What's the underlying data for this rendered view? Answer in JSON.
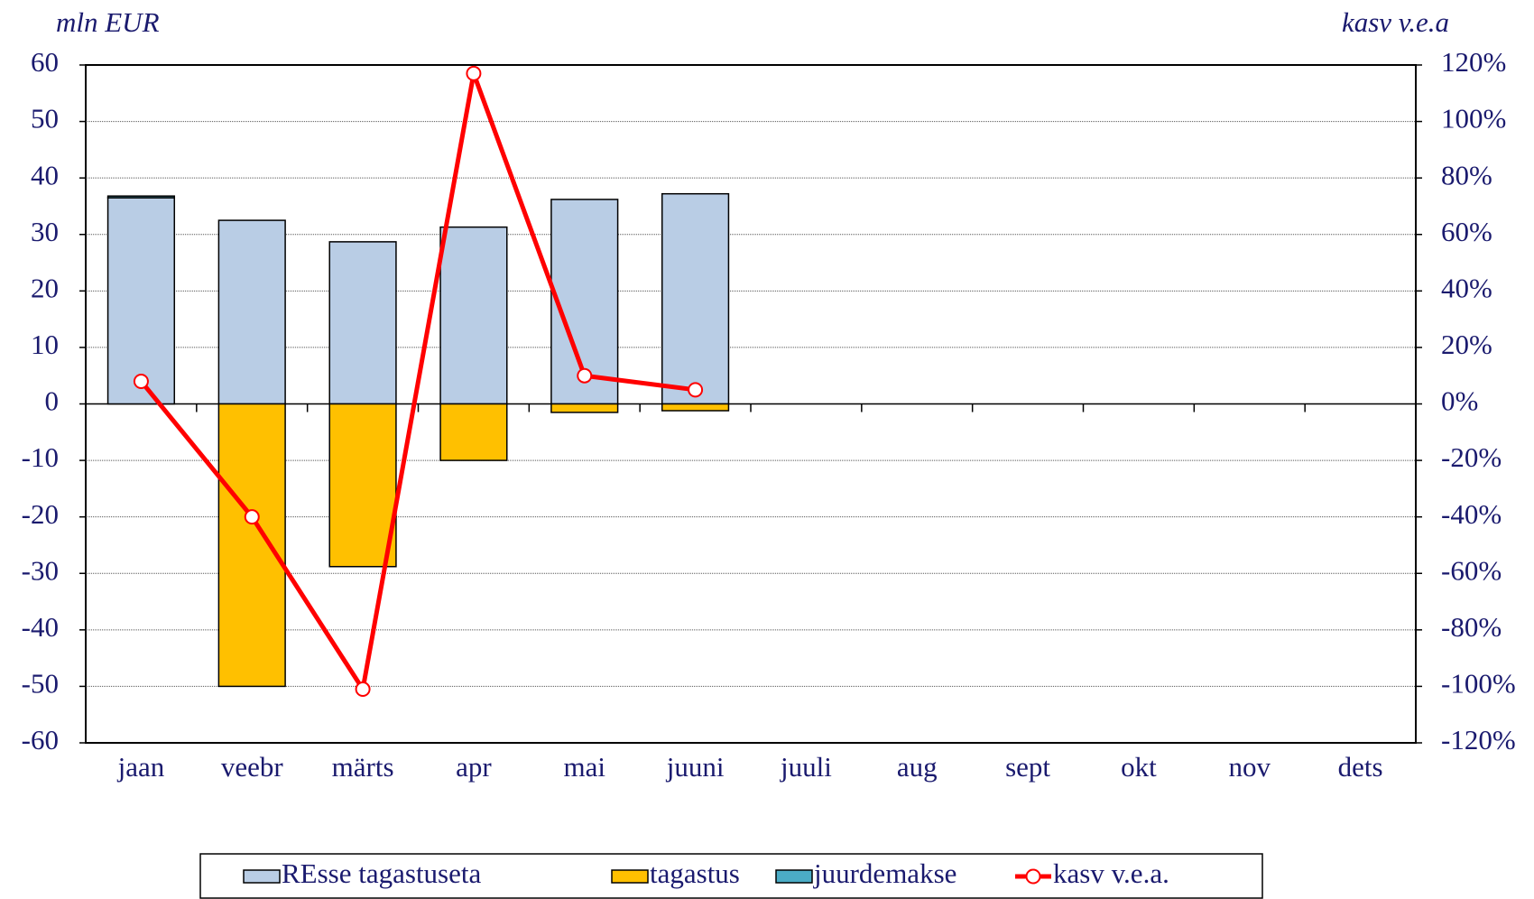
{
  "chart_data": {
    "type": "bar",
    "y_label": "mln EUR",
    "y2_label": "kasv v.e.a",
    "categories": [
      "jaan",
      "veebr",
      "märts",
      "apr",
      "mai",
      "juuni",
      "juuli",
      "aug",
      "sept",
      "okt",
      "nov",
      "dets"
    ],
    "stacked": true,
    "series": [
      {
        "name": "REsse tagastuseta",
        "color": "#b9cde5",
        "values": [
          36.5,
          32.5,
          28.7,
          31.3,
          36.2,
          37.2,
          null,
          null,
          null,
          null,
          null,
          null
        ]
      },
      {
        "name": "tagastus",
        "color": "#ffc000",
        "values": [
          0,
          -50,
          -28.8,
          -10,
          -1.5,
          -1.2,
          null,
          null,
          null,
          null,
          null,
          null
        ]
      },
      {
        "name": "juurdemakse",
        "color": "#4bacc6",
        "values": [
          0.3,
          0,
          0,
          0,
          0,
          0,
          null,
          null,
          null,
          null,
          null,
          null
        ]
      },
      {
        "name": "kasv v.e.a.",
        "color": "#ff0000",
        "type": "line",
        "axis": "y2",
        "values": [
          8,
          -40,
          -101,
          117,
          10,
          5,
          null,
          null,
          null,
          null,
          null,
          null
        ]
      }
    ],
    "ylim": [
      -60,
      60
    ],
    "yticks": [
      -60,
      -50,
      -40,
      -30,
      -20,
      -10,
      0,
      10,
      20,
      30,
      40,
      50,
      60
    ],
    "y2lim": [
      -120,
      120
    ],
    "y2ticks": [
      {
        "value": -120,
        "label": "-120%"
      },
      {
        "value": -100,
        "label": "-100%"
      },
      {
        "value": -80,
        "label": "-80%"
      },
      {
        "value": -60,
        "label": "-60%"
      },
      {
        "value": -40,
        "label": "-40%"
      },
      {
        "value": -20,
        "label": "-20%"
      },
      {
        "value": 0,
        "label": "0%"
      },
      {
        "value": 20,
        "label": "20%"
      },
      {
        "value": 40,
        "label": "40%"
      },
      {
        "value": 60,
        "label": "60%"
      },
      {
        "value": 80,
        "label": "80%"
      },
      {
        "value": 100,
        "label": "100%"
      },
      {
        "value": 120,
        "label": "120%"
      }
    ],
    "grid": true,
    "legend": "bottom"
  }
}
